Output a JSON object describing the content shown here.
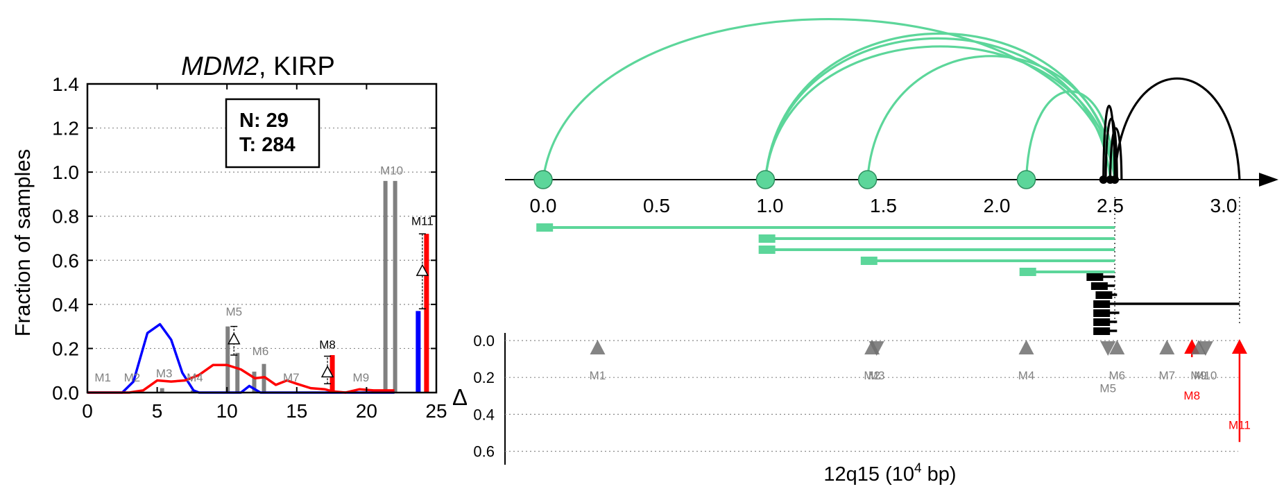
{
  "colors": {
    "blue": "#0000ff",
    "red": "#ff0000",
    "gray": "#808080",
    "green": "#5cd69a",
    "black": "#000000",
    "tri": "#6e6e6e"
  },
  "chart_data": [
    {
      "type": "bar",
      "title_italic": "MDM2",
      "title_rest": ", KIRP",
      "xlabel": "",
      "ylabel": "Fraction of samples",
      "xlim": [
        0,
        25
      ],
      "ylim": [
        0,
        1.4
      ],
      "xticks": [
        0,
        5,
        10,
        15,
        20,
        25
      ],
      "yticks": [
        0.0,
        0.2,
        0.4,
        0.6,
        0.8,
        1.0,
        1.2,
        1.4
      ],
      "grid": "y-dotted",
      "info_box": [
        "N: 29",
        "T: 284"
      ],
      "blue_line": {
        "x": [
          0,
          1,
          2,
          2.5,
          3.3,
          4.3,
          5.2,
          6,
          6.8,
          7.6,
          8,
          9,
          10,
          11,
          11.6,
          12.4,
          13,
          14,
          15,
          17,
          19,
          21,
          22
        ],
        "y": [
          0,
          0,
          0,
          0,
          0.05,
          0.27,
          0.31,
          0.24,
          0.09,
          0.01,
          0,
          0,
          0,
          0,
          0.03,
          0,
          0,
          0,
          0,
          0,
          0,
          0,
          0
        ]
      },
      "red_line": {
        "x": [
          0,
          1,
          2,
          3,
          3.5,
          4,
          5,
          6,
          7,
          8,
          9,
          10,
          11,
          12,
          12.7,
          13.5,
          14.3,
          15,
          16,
          17,
          17.6,
          18.5,
          19.5,
          20.5,
          21.5,
          22
        ],
        "y": [
          0,
          0,
          0,
          0,
          0.005,
          0.01,
          0.055,
          0.05,
          0.055,
          0.08,
          0.125,
          0.125,
          0.105,
          0.065,
          0.07,
          0.035,
          0.055,
          0.04,
          0.02,
          0.015,
          0.005,
          0,
          0.015,
          0.01,
          0.01,
          0.01
        ]
      },
      "markers": [
        {
          "label": "M1",
          "x": 1.1,
          "gray": 0.0,
          "label_y": 0.05,
          "label_color": "gray"
        },
        {
          "label": "M2",
          "x": 3.2,
          "gray": 0.0,
          "label_y": 0.05,
          "label_color": "gray"
        },
        {
          "label": "M3",
          "x": 5.5,
          "gray": 0.02,
          "label_y": 0.07,
          "label_color": "gray"
        },
        {
          "label": "M4",
          "x": 7.7,
          "gray": 0.01,
          "label_y": 0.05,
          "label_color": "gray"
        },
        {
          "label": "M5",
          "x": 10.5,
          "gray": 0.3,
          "gray2": 0.18,
          "label_y": 0.35,
          "label_color": "gray",
          "delta": 0.24,
          "err": [
            0.17,
            0.3
          ]
        },
        {
          "label": "M6",
          "x": 12.4,
          "gray": 0.095,
          "gray2": 0.13,
          "label_y": 0.17,
          "label_color": "gray"
        },
        {
          "label": "M7",
          "x": 14.6,
          "gray": 0.0,
          "label_y": 0.05,
          "label_color": "gray"
        },
        {
          "label": "M8",
          "x": 17.2,
          "red": 0.17,
          "label_y": 0.2,
          "label_color": "black",
          "delta": 0.09,
          "err": [
            0.04,
            0.165
          ]
        },
        {
          "label": "M9",
          "x": 19.6,
          "gray": 0.0,
          "label_y": 0.05,
          "label_color": "gray"
        },
        {
          "label": "M10",
          "x": 21.8,
          "gray": 0.96,
          "gray2": 0.96,
          "label_y": 0.99,
          "label_color": "gray"
        },
        {
          "label": "M11",
          "x": 24.0,
          "blue": 0.37,
          "red": 0.72,
          "label_y": 0.76,
          "label_color": "black",
          "delta": 0.55,
          "err": [
            0.38,
            0.72
          ]
        }
      ]
    },
    {
      "type": "arc-diagram",
      "xlabel_base": "12q15 (10",
      "xlabel_exp": "4",
      "xlabel_end": " bp)",
      "xlim": [
        -0.08,
        3.3
      ],
      "xticks": [
        0.0,
        0.5,
        1.0,
        1.5,
        2.0,
        2.5,
        3.0
      ],
      "tick_labels": [
        "0.0",
        "0.5",
        "1.0",
        "1.5",
        "2.0",
        "2.5",
        "3.0"
      ],
      "green_nodes": [
        0.0,
        0.98,
        1.43,
        2.13
      ],
      "black_nodes": [
        2.47,
        2.5,
        2.52
      ],
      "green_arcs": [
        {
          "from": 0.0,
          "to": 2.52,
          "height": 1.0
        },
        {
          "from": 0.98,
          "to": 2.52,
          "height": 0.91
        },
        {
          "from": 0.98,
          "to": 2.52,
          "height": 0.83
        },
        {
          "from": 1.43,
          "to": 2.52,
          "height": 0.77
        },
        {
          "from": 2.13,
          "to": 2.52,
          "height": 0.55
        },
        {
          "from": 0.98,
          "to": 2.5,
          "height": 0.88
        }
      ],
      "black_arcs": [
        {
          "from": 2.52,
          "to": 3.07,
          "height": 0.63
        },
        {
          "from": 2.47,
          "to": 2.52,
          "height": 0.46
        },
        {
          "from": 2.48,
          "to": 2.53,
          "height": 0.38
        },
        {
          "from": 2.5,
          "to": 2.55,
          "height": 0.32
        }
      ],
      "green_spans": [
        {
          "from": 0.0,
          "to": 2.52,
          "marker": -0.03
        },
        {
          "from": 0.98,
          "to": 2.52,
          "marker": 0.95
        },
        {
          "from": 0.98,
          "to": 2.52,
          "marker": 0.95
        },
        {
          "from": 1.43,
          "to": 2.52,
          "marker": 1.4
        },
        {
          "from": 2.13,
          "to": 2.52,
          "marker": 2.1
        }
      ],
      "black_spans": [
        {
          "from": 2.42,
          "to": 2.52
        },
        {
          "from": 2.44,
          "to": 2.52
        },
        {
          "from": 2.46,
          "to": 2.53
        },
        {
          "from": 2.45,
          "to": 3.07
        },
        {
          "from": 2.45,
          "to": 2.54
        },
        {
          "from": 2.45,
          "to": 2.53
        },
        {
          "from": 2.45,
          "to": 2.53
        }
      ],
      "dotted_lines": [
        2.52,
        3.07
      ]
    },
    {
      "type": "scatter",
      "ylabel": "Δ",
      "yticks": [
        0.0,
        0.2,
        0.4,
        0.6
      ],
      "tick_labels": [
        "0.0",
        "0.2",
        "0.4",
        "0.6"
      ],
      "ylim": [
        0,
        0.7
      ],
      "points": [
        {
          "label": "M1",
          "x": 0.24,
          "dir": "up",
          "color": "gray",
          "label_y": 0.18
        },
        {
          "label": "M2",
          "x": 1.45,
          "dir": "up",
          "color": "gray",
          "label_y": 0.18
        },
        {
          "label": "M3",
          "x": 1.47,
          "dir": "down",
          "color": "gray",
          "label_y": 0.18
        },
        {
          "label": "M4",
          "x": 2.13,
          "dir": "up",
          "color": "gray",
          "label_y": 0.18
        },
        {
          "label": "M5",
          "x": 2.49,
          "dir": "down",
          "color": "gray",
          "label_y": 0.25
        },
        {
          "label": "M6",
          "x": 2.53,
          "dir": "up",
          "color": "gray",
          "label_y": 0.18
        },
        {
          "label": "M7",
          "x": 2.75,
          "dir": "up",
          "color": "gray",
          "label_y": 0.18
        },
        {
          "label": "M8",
          "x": 2.86,
          "dir": "up",
          "color": "red",
          "delta": 0.09,
          "label_y": 0.29
        },
        {
          "label": "M9",
          "x": 2.89,
          "dir": "up",
          "color": "gray",
          "label_y": 0.18
        },
        {
          "label": "M10",
          "x": 2.92,
          "dir": "down",
          "color": "gray",
          "label_y": 0.18
        },
        {
          "label": "M11",
          "x": 3.07,
          "dir": "up",
          "color": "red",
          "delta": 0.55,
          "label_y": 0.45
        }
      ]
    }
  ]
}
